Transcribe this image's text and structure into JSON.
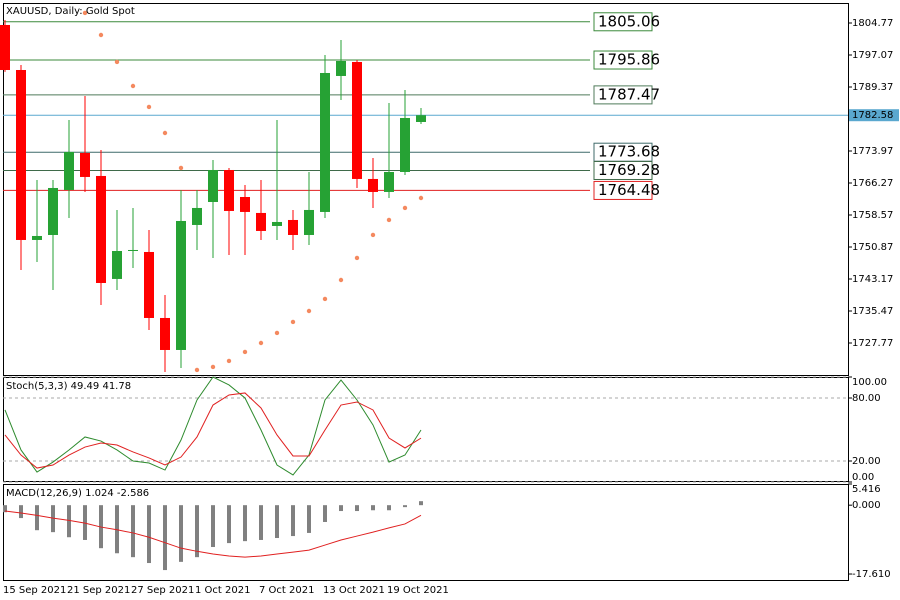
{
  "chart_data": [
    {
      "type": "candlestick",
      "title": "XAUUSD, Daily:  Gold Spot",
      "categories": [
        "15 Sep 2021",
        null,
        null,
        null,
        "21 Sep 2021",
        null,
        null,
        null,
        "27 Sep 2021",
        null,
        null,
        null,
        "1 Oct 2021",
        null,
        null,
        null,
        "7 Oct 2021",
        null,
        null,
        null,
        "13 Oct 2021",
        null,
        null,
        null,
        "19 Oct 2021",
        null,
        null
      ],
      "open": [
        1804.29,
        1793.46,
        1752.56,
        1753.76,
        1764.59,
        1773.49,
        1767.96,
        1743.18,
        1749.91,
        1749.67,
        1733.79,
        1726.09,
        1756.17,
        1761.7,
        1769.4,
        1762.9,
        1759.06,
        1755.93,
        1757.37,
        1753.76,
        1759.3,
        1792.02,
        1795.39,
        1767.24,
        1764.11,
        1768.92,
        1780.95
      ],
      "high": [
        1805.5,
        1794.67,
        1766.99,
        1766.99,
        1781.43,
        1787.21,
        1774.21,
        1759.78,
        1760.26,
        1754.97,
        1739.33,
        1764.59,
        1764.59,
        1771.81,
        1769.88,
        1765.79,
        1766.99,
        1781.43,
        1759.78,
        1768.92,
        1797.07,
        1800.68,
        1795.87,
        1772.29,
        1785.51,
        1788.65,
        1784.32
      ],
      "low": [
        1793.0,
        1745.34,
        1747.27,
        1740.53,
        1757.85,
        1764.11,
        1736.92,
        1740.53,
        1745.82,
        1730.9,
        1720.8,
        1721.76,
        1750.15,
        1748.23,
        1748.95,
        1748.95,
        1752.56,
        1752.56,
        1750.15,
        1751.36,
        1757.85,
        1786.24,
        1765.07,
        1760.26,
        1762.66,
        1768.2,
        1780.47
      ],
      "close": [
        1793.46,
        1752.56,
        1753.52,
        1765.07,
        1773.73,
        1767.72,
        1742.21,
        1749.91,
        1750.15,
        1733.79,
        1726.09,
        1757.13,
        1760.26,
        1769.4,
        1759.54,
        1759.3,
        1754.73,
        1756.89,
        1753.76,
        1759.78,
        1792.74,
        1795.63,
        1767.24,
        1764.11,
        1768.92,
        1781.91,
        1782.58
      ],
      "up_color": "#26a234",
      "down_color": "#ff0000",
      "sar": {
        "color": "#f4895f",
        "values": [
          null,
          null,
          null,
          null,
          null,
          1807.18,
          1801.88,
          1795.39,
          1789.61,
          1784.56,
          1778.3,
          1769.88,
          1721.28,
          1722.0,
          1723.45,
          1725.61,
          1727.77,
          1730.18,
          1732.83,
          1735.47,
          1738.36,
          1742.93,
          1748.23,
          1753.76,
          1757.37,
          1760.26,
          1762.66
        ]
      },
      "levels": [
        {
          "value": 1805.06,
          "color": "#3b8a3b"
        },
        {
          "value": 1795.86,
          "color": "#3b8a3b"
        },
        {
          "value": 1787.47,
          "color": "#4f7a5a"
        },
        {
          "value": 1773.68,
          "color": "#3f6a6a"
        },
        {
          "value": 1769.28,
          "color": "#3f6a4a"
        },
        {
          "value": 1764.48,
          "color": "#e02020"
        }
      ],
      "last_price": {
        "value": 1782.58,
        "color": "#5aa8cf"
      },
      "ylim": [
        1720.07,
        1809.58
      ],
      "yticks": [
        1804.77,
        1797.07,
        1789.37,
        1773.97,
        1766.27,
        1758.57,
        1750.87,
        1743.17,
        1735.47,
        1727.77
      ]
    },
    {
      "type": "line",
      "title": "Stoch(5,3,3) 49.49 41.78",
      "series": [
        {
          "color": "#2e8b2e",
          "values": [
            68.6,
            30.5,
            9.5,
            19.0,
            30.5,
            42.9,
            39.0,
            30.5,
            20.0,
            18.1,
            11.4,
            40.0,
            78.1,
            100,
            92.4,
            80.0,
            49.5,
            16.2,
            6.7,
            25.7,
            78.1,
            97.1,
            78.1,
            54.3,
            19.0,
            25.7,
            49.49
          ]
        },
        {
          "color": "#e02020",
          "values": [
            44.8,
            25.7,
            13.3,
            16.2,
            25.7,
            33.3,
            37.1,
            35.2,
            28.6,
            22.9,
            16.2,
            23.8,
            42.9,
            73.3,
            82.9,
            84.8,
            70.5,
            44.8,
            24.8,
            24.8,
            49.5,
            73.3,
            76.2,
            68.6,
            41.9,
            32.4,
            41.78
          ]
        }
      ],
      "ylim": [
        0,
        100
      ],
      "yticks": [
        {
          "value": 100,
          "label": "100.00"
        },
        {
          "value": 80,
          "label": "80.00"
        },
        {
          "value": 20,
          "label": "20.00"
        },
        {
          "value": 0,
          "label": "0.00"
        }
      ]
    },
    {
      "type": "macd",
      "title": "MACD(12,26,9) 1.024 -2.586",
      "histogram": {
        "color": "#808080",
        "values": [
          -1.8,
          -3.3,
          -6.4,
          -6.9,
          -8.2,
          -8.9,
          -11.0,
          -12.3,
          -13.3,
          -14.8,
          -16.6,
          -14.5,
          -13.3,
          -10.7,
          -9.7,
          -9.2,
          -8.9,
          -8.4,
          -7.9,
          -7.1,
          -4.3,
          -1.5,
          -1.5,
          -1.3,
          -1.3,
          -0.5,
          1.024
        ]
      },
      "signal": {
        "color": "#e02020",
        "values": [
          -1.5,
          -2.0,
          -2.6,
          -3.3,
          -3.9,
          -4.6,
          -5.6,
          -6.3,
          -7.1,
          -8.2,
          -9.6,
          -11.0,
          -11.8,
          -12.5,
          -13.0,
          -13.3,
          -13.0,
          -12.5,
          -12.0,
          -11.5,
          -10.2,
          -8.9,
          -7.9,
          -6.9,
          -5.8,
          -4.8,
          -2.586
        ]
      },
      "ylim": [
        -19.14,
        5.416
      ],
      "yticks": [
        {
          "value": 5.416,
          "label": "5.416"
        },
        {
          "value": 0,
          "label": "0.000"
        },
        {
          "value": -17.61,
          "label": "-17.610"
        }
      ]
    }
  ]
}
